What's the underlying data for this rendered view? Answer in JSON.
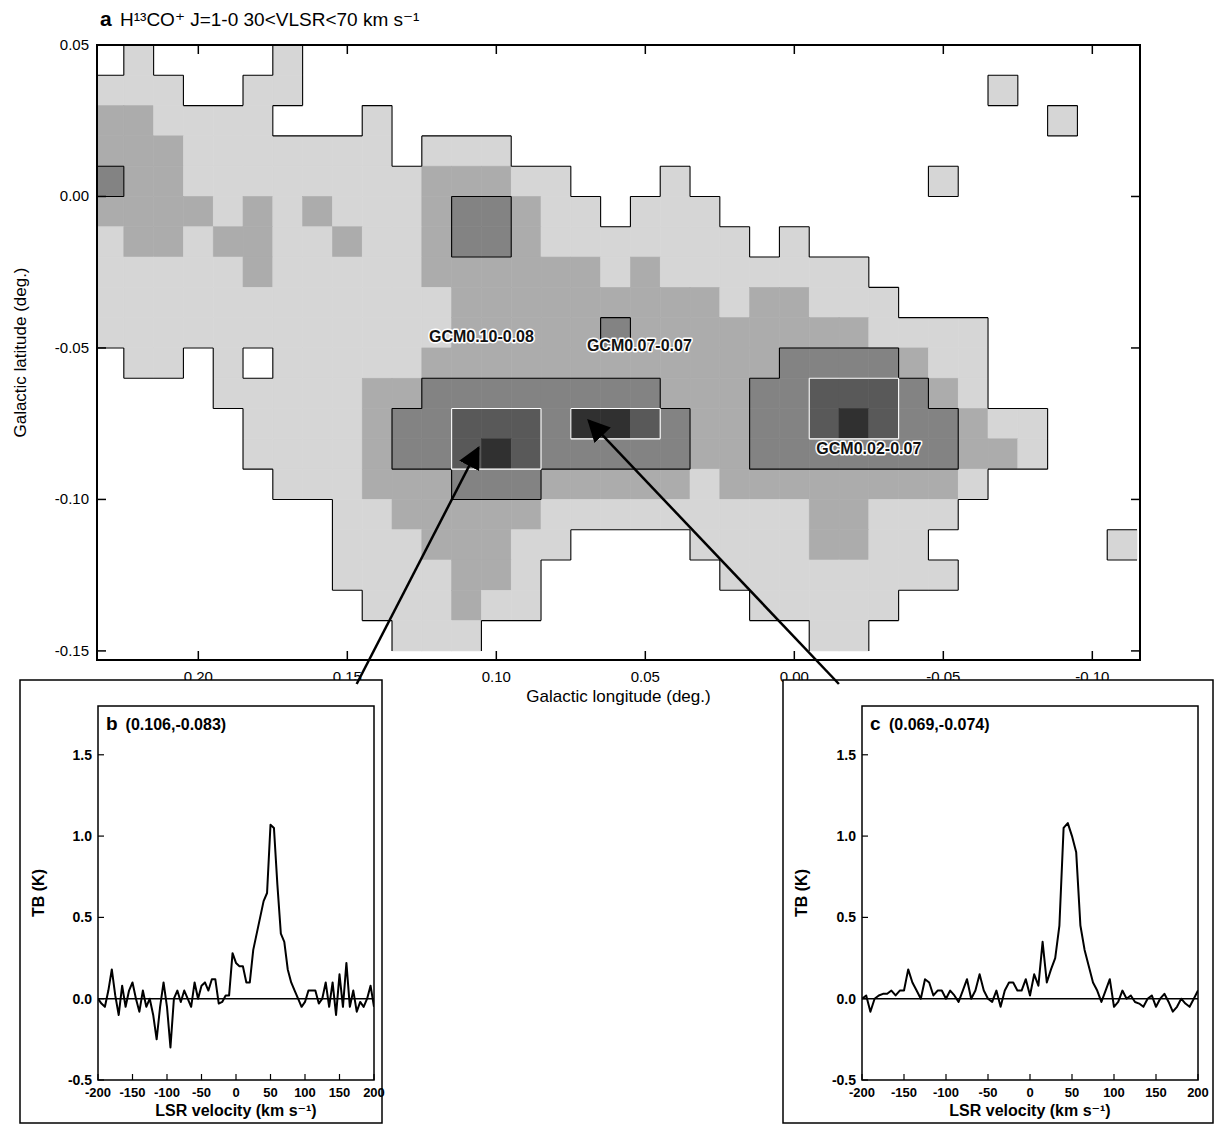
{
  "chart_data": [
    {
      "type": "heatmap",
      "panel": "a",
      "title": "H¹³CO⁺ J=1-0  30<VLSR<70 km s⁻¹",
      "x_label": "Galactic longitude (deg.)",
      "y_label": "Galactic latitude (deg.)",
      "xlim": [
        0.234,
        -0.116
      ],
      "ylim": [
        -0.153,
        0.05
      ],
      "xticks": [
        {
          "value": 0.2,
          "label": "0.20"
        },
        0.15,
        {
          "value": 0.1,
          "label": "0.10"
        },
        0.05,
        {
          "value": 0,
          "label": "0.00"
        },
        -0.05,
        {
          "value": -0.1,
          "label": "-0.10"
        }
      ],
      "yticks": [
        0.05,
        {
          "value": 0,
          "label": "0.00"
        },
        -0.05,
        {
          "value": -0.1,
          "label": "-0.10"
        },
        -0.15
      ],
      "x": [
        0.23,
        0.22,
        0.21,
        0.2,
        0.19,
        0.18,
        0.17,
        0.16,
        0.15,
        0.14,
        0.13,
        0.12,
        0.11,
        0.1,
        0.09,
        0.08,
        0.07,
        0.06,
        0.05,
        0.04,
        0.03,
        0.02,
        0.01,
        0,
        -0.01,
        -0.02,
        -0.03,
        -0.04,
        -0.05,
        -0.06,
        -0.07,
        -0.08,
        -0.09,
        -0.1,
        -0.11
      ],
      "y": [
        0.045,
        0.035,
        0.025,
        0.015,
        0.005,
        -0.005,
        -0.015,
        -0.025,
        -0.035,
        -0.045,
        -0.055,
        -0.065,
        -0.075,
        -0.085,
        -0.095,
        -0.105,
        -0.115,
        -0.125,
        -0.135,
        -0.145
      ],
      "cells": [
        [
          0,
          1,
          0,
          0,
          0,
          0,
          1,
          0,
          0,
          0,
          0,
          0,
          0,
          0,
          0,
          0,
          0,
          0,
          0,
          0,
          0,
          0,
          0,
          0,
          0,
          0,
          0,
          0,
          0,
          0,
          0,
          0,
          0,
          0,
          0
        ],
        [
          1,
          1,
          1,
          0,
          0,
          1,
          1,
          0,
          0,
          0,
          0,
          0,
          0,
          0,
          0,
          0,
          0,
          0,
          0,
          0,
          0,
          0,
          0,
          0,
          0,
          0,
          0,
          0,
          0,
          0,
          1,
          0,
          0,
          0,
          0
        ],
        [
          2,
          2,
          1,
          1,
          1,
          1,
          0,
          0,
          0,
          1,
          0,
          0,
          0,
          0,
          0,
          0,
          0,
          0,
          0,
          0,
          0,
          0,
          0,
          0,
          0,
          0,
          0,
          0,
          0,
          0,
          0,
          0,
          1,
          0,
          0
        ],
        [
          2,
          2,
          2,
          1,
          1,
          1,
          1,
          1,
          1,
          1,
          0,
          1,
          1,
          1,
          0,
          0,
          0,
          0,
          0,
          0,
          0,
          0,
          0,
          0,
          0,
          0,
          0,
          0,
          0,
          0,
          0,
          0,
          0,
          0,
          0
        ],
        [
          3,
          2,
          2,
          1,
          1,
          1,
          1,
          1,
          1,
          1,
          1,
          2,
          2,
          2,
          1,
          1,
          0,
          0,
          0,
          1,
          0,
          0,
          0,
          0,
          0,
          0,
          0,
          0,
          1,
          0,
          0,
          0,
          0,
          0,
          0
        ],
        [
          2,
          2,
          2,
          2,
          1,
          2,
          1,
          2,
          1,
          1,
          1,
          2,
          3,
          3,
          2,
          1,
          1,
          0,
          1,
          1,
          1,
          0,
          0,
          0,
          0,
          0,
          0,
          0,
          0,
          0,
          0,
          0,
          0,
          0,
          0
        ],
        [
          1,
          2,
          2,
          1,
          2,
          2,
          1,
          1,
          2,
          1,
          1,
          2,
          3,
          3,
          2,
          1,
          1,
          1,
          1,
          1,
          1,
          1,
          0,
          1,
          0,
          0,
          0,
          0,
          0,
          0,
          0,
          0,
          0,
          0,
          0
        ],
        [
          1,
          1,
          1,
          1,
          1,
          2,
          1,
          1,
          1,
          1,
          1,
          2,
          2,
          2,
          2,
          2,
          2,
          1,
          2,
          1,
          1,
          1,
          1,
          1,
          1,
          1,
          0,
          0,
          0,
          0,
          0,
          0,
          0,
          0,
          0
        ],
        [
          1,
          1,
          1,
          1,
          1,
          1,
          1,
          1,
          1,
          1,
          1,
          1,
          2,
          2,
          2,
          2,
          2,
          2,
          2,
          2,
          2,
          1,
          2,
          2,
          1,
          1,
          1,
          0,
          0,
          0,
          0,
          0,
          0,
          0,
          0
        ],
        [
          1,
          1,
          1,
          1,
          1,
          1,
          1,
          1,
          1,
          1,
          1,
          1,
          2,
          2,
          2,
          2,
          2,
          3,
          2,
          2,
          2,
          2,
          2,
          2,
          2,
          2,
          1,
          1,
          1,
          1,
          0,
          0,
          0,
          0,
          0
        ],
        [
          0,
          1,
          1,
          0,
          1,
          0,
          1,
          1,
          1,
          1,
          1,
          2,
          2,
          2,
          2,
          2,
          2,
          2,
          2,
          2,
          2,
          2,
          2,
          3,
          3,
          3,
          3,
          2,
          1,
          1,
          0,
          0,
          0,
          0,
          0
        ],
        [
          0,
          0,
          0,
          0,
          1,
          1,
          1,
          1,
          1,
          2,
          2,
          3,
          3,
          3,
          3,
          3,
          3,
          3,
          3,
          2,
          2,
          2,
          3,
          3,
          4,
          4,
          4,
          3,
          2,
          1,
          0,
          0,
          0,
          0,
          0
        ],
        [
          0,
          0,
          0,
          0,
          0,
          1,
          1,
          1,
          1,
          2,
          3,
          3,
          4,
          4,
          4,
          3,
          5,
          5,
          4,
          3,
          2,
          2,
          3,
          3,
          4,
          5,
          4,
          3,
          3,
          2,
          1,
          1,
          0,
          0,
          0
        ],
        [
          0,
          0,
          0,
          0,
          0,
          1,
          1,
          1,
          1,
          2,
          3,
          3,
          4,
          5,
          4,
          3,
          3,
          3,
          3,
          3,
          2,
          2,
          3,
          3,
          3,
          3,
          3,
          3,
          3,
          2,
          2,
          1,
          0,
          0,
          0
        ],
        [
          0,
          0,
          0,
          0,
          0,
          0,
          1,
          1,
          1,
          2,
          2,
          2,
          3,
          3,
          3,
          2,
          2,
          2,
          2,
          2,
          1,
          2,
          2,
          2,
          2,
          2,
          2,
          2,
          2,
          1,
          0,
          0,
          0,
          0,
          0
        ],
        [
          0,
          0,
          0,
          0,
          0,
          0,
          0,
          0,
          1,
          1,
          2,
          2,
          2,
          2,
          2,
          1,
          1,
          1,
          1,
          1,
          1,
          1,
          1,
          1,
          2,
          2,
          1,
          1,
          1,
          0,
          0,
          0,
          0,
          0,
          0
        ],
        [
          0,
          0,
          0,
          0,
          0,
          0,
          0,
          0,
          1,
          1,
          1,
          2,
          2,
          2,
          1,
          1,
          0,
          0,
          0,
          0,
          1,
          1,
          1,
          1,
          2,
          2,
          1,
          1,
          0,
          0,
          0,
          0,
          0,
          0,
          1
        ],
        [
          0,
          0,
          0,
          0,
          0,
          0,
          0,
          0,
          1,
          1,
          1,
          1,
          2,
          2,
          1,
          0,
          0,
          0,
          0,
          0,
          0,
          1,
          1,
          1,
          1,
          1,
          1,
          1,
          1,
          0,
          0,
          0,
          0,
          0,
          0
        ],
        [
          0,
          0,
          0,
          0,
          0,
          0,
          0,
          0,
          0,
          1,
          1,
          1,
          2,
          1,
          1,
          0,
          0,
          0,
          0,
          0,
          0,
          0,
          1,
          1,
          1,
          1,
          1,
          0,
          0,
          0,
          0,
          0,
          0,
          0,
          0
        ],
        [
          0,
          0,
          0,
          0,
          0,
          0,
          0,
          0,
          0,
          0,
          1,
          1,
          1,
          0,
          0,
          0,
          0,
          0,
          0,
          0,
          0,
          0,
          0,
          0,
          1,
          1,
          0,
          0,
          0,
          0,
          0,
          0,
          0,
          0,
          0
        ]
      ],
      "contour_levels": [
        1,
        3,
        4
      ],
      "annotations": [
        {
          "text": "GCM0.10-0.08",
          "lon": 0.105,
          "lat": -0.048
        },
        {
          "text": "GCM0.07-0.07",
          "lon": 0.052,
          "lat": -0.051
        },
        {
          "text": "GCM0.02-0.07",
          "lon": -0.025,
          "lat": -0.085
        }
      ]
    },
    {
      "type": "line",
      "panel": "b",
      "position": [
        0.106,
        -0.083
      ],
      "position_label": "(0.106,-0.083)",
      "x_label": "LSR velocity (km s⁻¹)",
      "y_label": "TB (K)",
      "color": "#000000",
      "xlim": [
        -200,
        200
      ],
      "ylim": [
        -0.5,
        1.8
      ],
      "xticks": [
        -200,
        -150,
        -100,
        -50,
        0,
        50,
        100,
        150,
        200
      ],
      "yticks": [
        -0.5,
        {
          "value": 0,
          "label": "0.0"
        },
        0.5,
        {
          "value": 1,
          "label": "1.0"
        },
        1.5
      ],
      "x": [
        -200,
        -195,
        -190,
        -185,
        -180,
        -175,
        -170,
        -165,
        -160,
        -155,
        -150,
        -145,
        -140,
        -135,
        -130,
        -125,
        -120,
        -115,
        -110,
        -105,
        -100,
        -95,
        -90,
        -85,
        -80,
        -75,
        -70,
        -65,
        -60,
        -55,
        -50,
        -45,
        -40,
        -35,
        -30,
        -25,
        -20,
        -15,
        -10,
        -5,
        0,
        5,
        10,
        15,
        20,
        25,
        30,
        35,
        40,
        45,
        50,
        55,
        60,
        65,
        70,
        75,
        80,
        85,
        90,
        95,
        100,
        105,
        110,
        115,
        120,
        125,
        130,
        135,
        140,
        145,
        150,
        155,
        160,
        165,
        170,
        175,
        180,
        185,
        190,
        195,
        200
      ],
      "values": [
        0,
        -0.03,
        -0.05,
        0.05,
        0.18,
        0.02,
        -0.1,
        0.08,
        -0.05,
        0.05,
        0.1,
        0,
        -0.08,
        0.05,
        -0.05,
        0,
        -0.1,
        -0.25,
        -0.05,
        0.1,
        -0.05,
        -0.3,
        0,
        0.05,
        -0.02,
        0.05,
        0,
        -0.05,
        0.1,
        0,
        0.08,
        0.1,
        0.05,
        0.12,
        0.12,
        -0.03,
        -0.02,
        0.02,
        0.02,
        0.28,
        0.22,
        0.2,
        0.2,
        0.1,
        0.1,
        0.3,
        0.4,
        0.5,
        0.6,
        0.65,
        1.07,
        1.05,
        0.7,
        0.4,
        0.35,
        0.18,
        0.1,
        0.05,
        0,
        -0.05,
        -0.02,
        0.05,
        0.05,
        0.05,
        -0.03,
        0,
        0.1,
        -0.05,
        0.1,
        -0.1,
        0.15,
        -0.05,
        0.22,
        -0.05,
        0.05,
        -0.08,
        -0.02,
        -0.05,
        0,
        0.08,
        -0.05
      ]
    },
    {
      "type": "line",
      "panel": "c",
      "position": [
        0.069,
        -0.074
      ],
      "position_label": "(0.069,-0.074)",
      "x_label": "LSR velocity (km s⁻¹)",
      "y_label": "TB (K)",
      "color": "#000000",
      "xlim": [
        -200,
        200
      ],
      "ylim": [
        -0.5,
        1.8
      ],
      "xticks": [
        -200,
        -150,
        -100,
        -50,
        0,
        50,
        100,
        150,
        200
      ],
      "yticks": [
        -0.5,
        {
          "value": 0,
          "label": "0.0"
        },
        0.5,
        {
          "value": 1,
          "label": "1.0"
        },
        1.5
      ],
      "x": [
        -200,
        -195,
        -190,
        -185,
        -180,
        -175,
        -170,
        -165,
        -160,
        -155,
        -150,
        -145,
        -140,
        -135,
        -130,
        -125,
        -120,
        -115,
        -110,
        -105,
        -100,
        -95,
        -90,
        -85,
        -80,
        -75,
        -70,
        -65,
        -60,
        -55,
        -50,
        -45,
        -40,
        -35,
        -30,
        -25,
        -20,
        -15,
        -10,
        -5,
        0,
        5,
        10,
        15,
        20,
        25,
        30,
        35,
        40,
        45,
        50,
        55,
        60,
        65,
        70,
        75,
        80,
        85,
        90,
        95,
        100,
        105,
        110,
        115,
        120,
        125,
        130,
        135,
        140,
        145,
        150,
        155,
        160,
        165,
        170,
        175,
        180,
        185,
        190,
        195,
        200
      ],
      "values": [
        0,
        0.02,
        -0.08,
        0,
        0.02,
        0.03,
        0.03,
        0.05,
        0.02,
        0.05,
        0.05,
        0.18,
        0.1,
        0.05,
        0,
        0.12,
        0.1,
        0.02,
        0.05,
        0.05,
        0,
        0.05,
        0.02,
        -0.02,
        0.05,
        0.12,
        0,
        0.05,
        0.15,
        0.05,
        0,
        -0.02,
        0.05,
        -0.05,
        0.05,
        0.1,
        0.1,
        0.05,
        0.05,
        0.12,
        0.02,
        0.15,
        0.08,
        0.35,
        0.1,
        0.18,
        0.25,
        0.45,
        1.05,
        1.08,
        1,
        0.9,
        0.45,
        0.3,
        0.2,
        0.1,
        0.05,
        -0.02,
        0.05,
        0.12,
        -0.05,
        -0.02,
        0.05,
        0,
        0.02,
        -0.02,
        -0.03,
        -0.05,
        0,
        0.02,
        -0.05,
        0,
        0.03,
        -0.02,
        -0.08,
        -0.05,
        0,
        -0.03,
        -0.05,
        0,
        0.05
      ]
    }
  ]
}
